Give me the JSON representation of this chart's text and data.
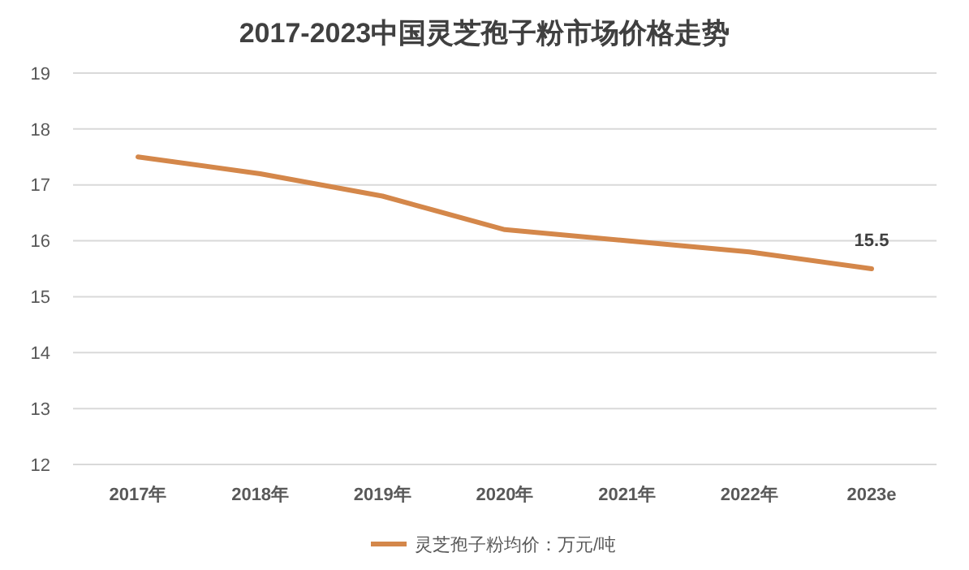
{
  "chart_data": {
    "type": "line",
    "title": "2017-2023中国灵芝孢子粉市场价格走势",
    "categories": [
      "2017年",
      "2018年",
      "2019年",
      "2020年",
      "2021年",
      "2022年",
      "2023e"
    ],
    "series": [
      {
        "name": "灵芝孢子粉均价：万元/吨",
        "color": "#d4874a",
        "values": [
          17.5,
          17.2,
          16.8,
          16.2,
          16.0,
          15.8,
          15.5
        ],
        "value_labels": [
          null,
          null,
          null,
          null,
          null,
          null,
          "15.5"
        ]
      }
    ],
    "ylim": [
      12,
      19
    ],
    "yticks": [
      12,
      13,
      14,
      15,
      16,
      17,
      18,
      19
    ],
    "grid": "y",
    "legend": "bottom",
    "marker": "none",
    "line_style": "solid"
  }
}
